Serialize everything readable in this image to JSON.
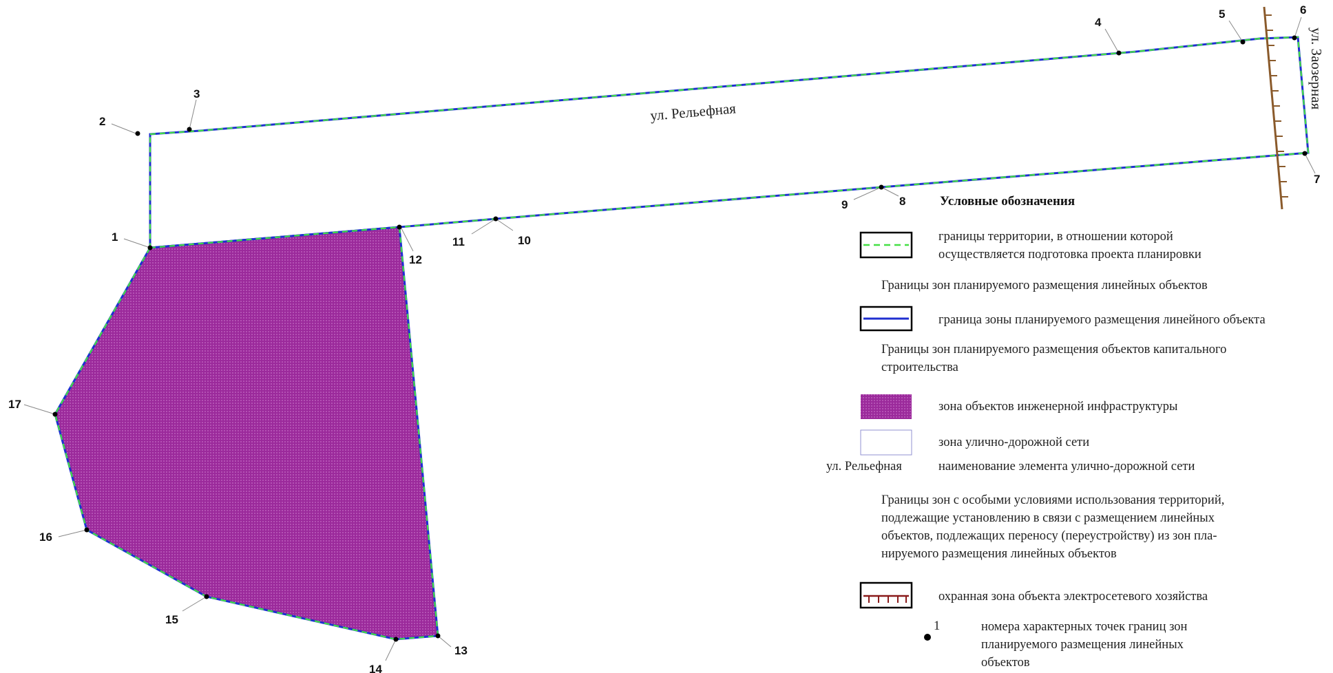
{
  "streets": {
    "relefnaya": "ул. Рельефная",
    "zaozernaya": "ул. Заозерная"
  },
  "points": [
    "1",
    "2",
    "3",
    "4",
    "5",
    "6",
    "7",
    "8",
    "9",
    "10",
    "11",
    "12",
    "13",
    "14",
    "15",
    "16",
    "17"
  ],
  "colors": {
    "boundary_dash": "#44e044",
    "boundary_line": "#1f2fd0",
    "zone_fill": "#9b2a9b",
    "electric_zone": "#8a5a2b"
  },
  "legend": {
    "title": "Условные обозначения",
    "boundary_text_1": "границы территории, в отношении которой",
    "boundary_text_2": "осуществляется подготовка проекта планировки",
    "section_linear": "Границы зон планируемого размещения линейных объектов",
    "linear_boundary": "граница зоны планируемого размещения линейного объекта",
    "section_capital_1": "Границы зон планируемого размещения объектов капитального",
    "section_capital_2": "строительства",
    "engineering_zone": "зона объектов инженерной инфраструктуры",
    "road_zone": "зона улично-дорожной сети",
    "road_name_sample": "ул. Рельефная",
    "road_name_desc": "наименование элемента улично-дорожной сети",
    "section_special_1": "Границы зон с особыми условиями использования территорий,",
    "section_special_2": "подлежащие установлению в связи с размещением линейных",
    "section_special_3": "объектов, подлежащих переносу (переустройству) из зон пла-",
    "section_special_4": "нируемого размещения линейных объектов",
    "electric_zone": "охранная зона объекта электросетевого хозяйства",
    "point_sample": "1",
    "points_desc_1": "номера характерных точек границ зон",
    "points_desc_2": "планируемого размещения линейных",
    "points_desc_3": "объектов"
  }
}
